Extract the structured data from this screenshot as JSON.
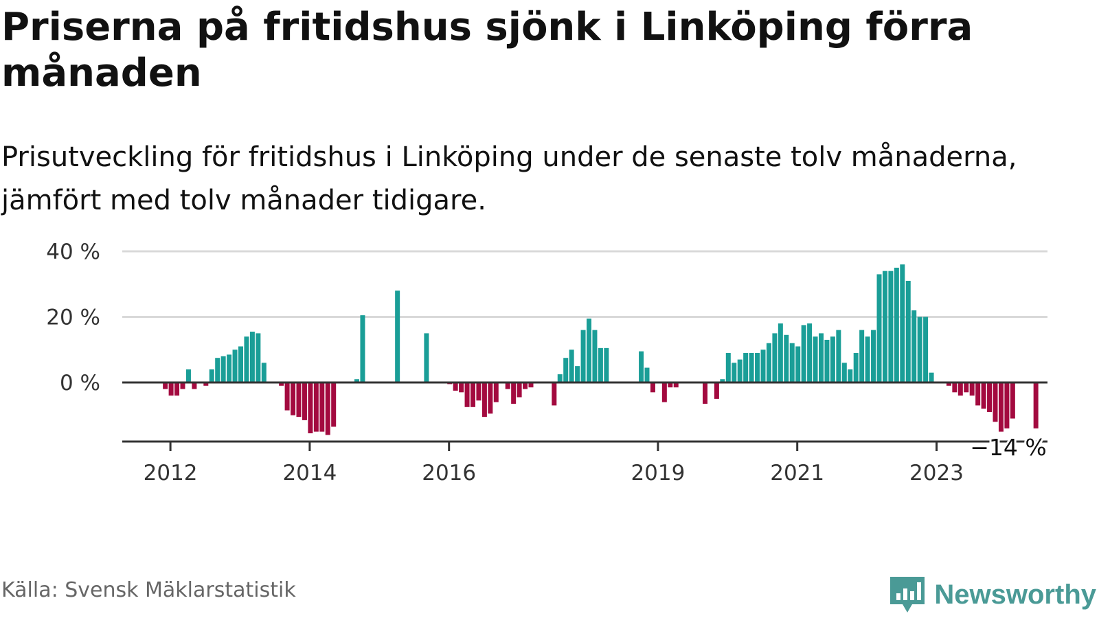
{
  "title": "Priserna på fritidshus sjönk i Linköping förra månaden",
  "subtitle": "Prisutveckling för fritidshus i Linköping under de senaste tolv månaderna, jämfört med tolv månader tidigare.",
  "source": "Källa: Svensk Mäklarstatistik",
  "brand": "Newsworthy",
  "colors": {
    "positive": "#1a9e97",
    "negative": "#a30a3f",
    "grid": "#d9d9d9",
    "axis": "#333333",
    "brand": "#4a9a96"
  },
  "chart_data": {
    "type": "bar",
    "ylim": [
      -18,
      40
    ],
    "yticks": [
      0,
      20,
      40
    ],
    "ytick_labels": [
      "0 %",
      "20 %",
      "40 %"
    ],
    "grid": true,
    "xtick_labels": [
      {
        "label": "2012",
        "index": 8
      },
      {
        "label": "2014",
        "index": 32
      },
      {
        "label": "2016",
        "index": 56
      },
      {
        "label": "2019",
        "index": 92
      },
      {
        "label": "2021",
        "index": 116
      },
      {
        "label": "2023",
        "index": 140
      }
    ],
    "last_value_label": "−14 %",
    "months_start": "2011-05",
    "values": [
      null,
      null,
      null,
      null,
      null,
      null,
      null,
      -2,
      -4,
      -4,
      -2,
      4,
      -2,
      null,
      -1,
      4,
      7.5,
      8,
      8.5,
      10,
      11,
      14,
      15.5,
      15,
      6,
      null,
      null,
      -1,
      -8.5,
      -10,
      -10.5,
      -11.5,
      -15.5,
      -15,
      -15,
      -16,
      -13.5,
      null,
      null,
      null,
      1,
      20.5,
      null,
      null,
      null,
      null,
      null,
      28,
      null,
      null,
      null,
      null,
      15,
      null,
      null,
      null,
      -0.5,
      -2.5,
      -3,
      -7.5,
      -7.5,
      -5.5,
      -10.5,
      -9.5,
      -6,
      null,
      -2,
      -6.5,
      -4.5,
      -2,
      -1.5,
      null,
      null,
      null,
      -7,
      2.5,
      7.5,
      10,
      5,
      16,
      19.5,
      16,
      10.5,
      10.5,
      null,
      null,
      null,
      null,
      null,
      9.5,
      4.5,
      -3,
      null,
      -6,
      -1.5,
      -1.5,
      null,
      null,
      null,
      null,
      -6.5,
      null,
      -5,
      1,
      9,
      6,
      7,
      9,
      9,
      9,
      10,
      12,
      15,
      18,
      14.5,
      12,
      11,
      17.5,
      18,
      14,
      15,
      13,
      14,
      16,
      6,
      4,
      9,
      16,
      14,
      16,
      33,
      34,
      34,
      35,
      36,
      31,
      22,
      20,
      20,
      3,
      null,
      null,
      -1,
      -3,
      -4,
      -3,
      -4,
      -7,
      -8,
      -9,
      -12,
      -15,
      -14,
      -11,
      null,
      null,
      null,
      -14
    ]
  }
}
